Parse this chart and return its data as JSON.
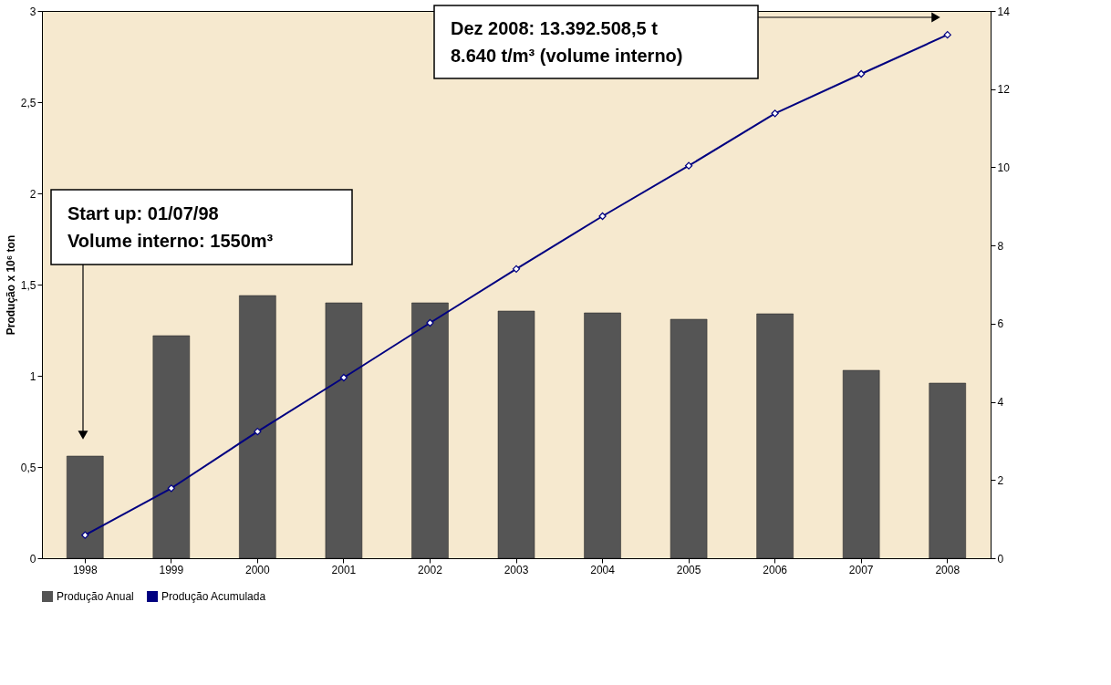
{
  "chart_data": {
    "type": "bar",
    "categories": [
      "1998",
      "1999",
      "2000",
      "2001",
      "2002",
      "2003",
      "2004",
      "2005",
      "2006",
      "2007",
      "2008"
    ],
    "ylabel": "Produção x 10⁶ ton",
    "series": [
      {
        "name": "Produção Anual",
        "type": "bar",
        "color": "#555555",
        "values": [
          0.56,
          1.22,
          1.44,
          1.4,
          1.4,
          1.355,
          1.345,
          1.31,
          1.34,
          1.03,
          0.96
        ]
      },
      {
        "name": "Produção Acumulada",
        "type": "line",
        "axis": "y2",
        "color": "#000080",
        "marker": "diamond",
        "values": [
          0.59,
          1.79,
          3.24,
          4.62,
          6.02,
          7.4,
          8.75,
          10.04,
          11.38,
          12.39,
          13.39
        ]
      }
    ],
    "ylim": [
      0,
      3
    ],
    "yticks": [
      0,
      {
        "value": 0.5,
        "label": "0,5"
      },
      1,
      {
        "value": 1.5,
        "label": "1,5"
      },
      2,
      {
        "value": 2.5,
        "label": "2,5"
      },
      3
    ],
    "y2lim": [
      0,
      14
    ],
    "y2ticks": [
      0,
      2,
      4,
      6,
      8,
      10,
      12,
      14
    ],
    "annotations": [
      "Start up: 01/07/98\nVolume interno: 1550m³",
      "Dez 2008: 13.392.508,5 t\n8.640 t/m³ (volume interno)"
    ],
    "legend": "bottom",
    "grid": false
  }
}
